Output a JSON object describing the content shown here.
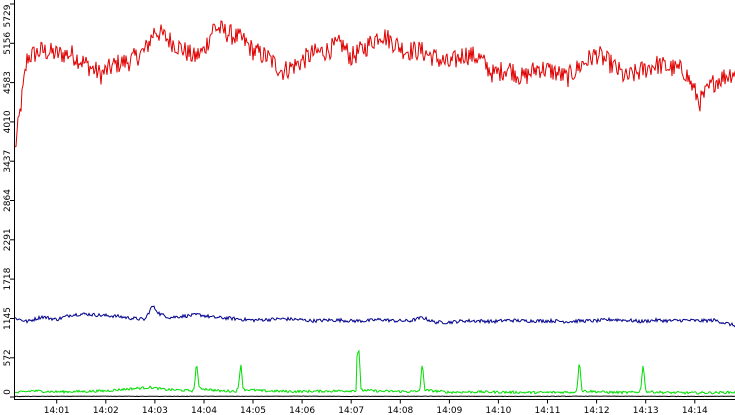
{
  "chart_data": {
    "type": "line",
    "title": "",
    "xlabel": "",
    "ylabel": "",
    "ylim": [
      0,
      5729
    ],
    "y_ticks": [
      "0",
      "572",
      "1145",
      "1718",
      "2291",
      "2864",
      "3437",
      "4010",
      "4583",
      "5156",
      "5729"
    ],
    "y_tick_values": [
      0,
      572,
      1145,
      1718,
      2291,
      2864,
      3437,
      4010,
      4583,
      5156,
      5729
    ],
    "x_ticks": [
      "14:01",
      "14:02",
      "14:03",
      "14:04",
      "14:05",
      "14:06",
      "14:07",
      "14:08",
      "14:09",
      "14:10",
      "14:11",
      "14:12",
      "14:13",
      "14:14"
    ],
    "x_tick_minutes": [
      1,
      2,
      3,
      4,
      5,
      6,
      7,
      8,
      9,
      10,
      11,
      12,
      13,
      14
    ],
    "x_range_minutes": [
      0.15,
      14.82
    ],
    "grid": false,
    "legend": "none",
    "series": [
      {
        "color": "#e00000",
        "x": [
          0.15,
          0.4,
          0.7,
          1.0,
          1.3,
          1.6,
          1.9,
          2.2,
          2.5,
          2.8,
          3.0,
          3.2,
          3.5,
          3.8,
          4.0,
          4.2,
          4.5,
          4.8,
          5.0,
          5.3,
          5.6,
          5.9,
          6.2,
          6.5,
          6.8,
          7.0,
          7.3,
          7.6,
          7.9,
          8.1,
          8.4,
          8.7,
          9.0,
          9.3,
          9.6,
          9.9,
          10.2,
          10.5,
          10.8,
          11.1,
          11.4,
          11.7,
          12.0,
          12.3,
          12.6,
          12.9,
          13.2,
          13.5,
          13.8,
          14.1,
          14.4,
          14.82
        ],
        "values": [
          3600,
          4950,
          5050,
          5000,
          5000,
          4850,
          4700,
          4850,
          4900,
          5050,
          5350,
          5250,
          5100,
          4950,
          5050,
          5400,
          5300,
          5200,
          5050,
          4950,
          4750,
          4850,
          5000,
          5050,
          5150,
          4950,
          5100,
          5300,
          5150,
          5050,
          5050,
          4950,
          4850,
          5000,
          4950,
          4700,
          4800,
          4650,
          4800,
          4750,
          4650,
          4850,
          5000,
          4850,
          4650,
          4750,
          4850,
          4800,
          4750,
          4300,
          4600,
          4750
        ]
      },
      {
        "color": "#00008c",
        "x": [
          0.15,
          0.4,
          0.7,
          1.0,
          1.3,
          1.6,
          1.9,
          2.2,
          2.5,
          2.8,
          2.95,
          3.1,
          3.3,
          3.6,
          3.9,
          4.2,
          4.5,
          4.8,
          5.0,
          5.3,
          5.6,
          5.9,
          6.2,
          6.5,
          6.8,
          7.0,
          7.3,
          7.6,
          7.9,
          8.2,
          8.45,
          8.7,
          9.0,
          9.3,
          9.6,
          9.9,
          10.2,
          10.5,
          10.8,
          11.1,
          11.4,
          11.7,
          12.0,
          12.3,
          12.6,
          12.9,
          13.2,
          13.5,
          13.8,
          14.1,
          14.4,
          14.82
        ],
        "values": [
          1150,
          1100,
          1170,
          1130,
          1200,
          1210,
          1190,
          1180,
          1150,
          1130,
          1330,
          1210,
          1160,
          1180,
          1200,
          1160,
          1150,
          1130,
          1120,
          1130,
          1140,
          1130,
          1110,
          1120,
          1120,
          1110,
          1110,
          1130,
          1110,
          1110,
          1160,
          1090,
          1090,
          1110,
          1110,
          1100,
          1120,
          1110,
          1110,
          1110,
          1100,
          1110,
          1110,
          1130,
          1120,
          1100,
          1120,
          1110,
          1120,
          1110,
          1120,
          1040
        ]
      },
      {
        "color": "#00dd00",
        "x": [
          0.15,
          0.5,
          1.0,
          1.5,
          2.0,
          2.5,
          2.9,
          3.2,
          3.5,
          3.78,
          3.8,
          3.85,
          3.9,
          4.3,
          4.65,
          4.7,
          4.75,
          4.8,
          5.2,
          5.8,
          6.4,
          6.9,
          7.1,
          7.12,
          7.16,
          7.2,
          7.6,
          8.1,
          8.35,
          8.4,
          8.45,
          8.5,
          9.0,
          9.6,
          10.2,
          10.8,
          11.3,
          11.55,
          11.6,
          11.65,
          11.7,
          12.2,
          12.6,
          12.85,
          12.9,
          12.95,
          13.0,
          13.4,
          14.0,
          14.5,
          14.82
        ],
        "values": [
          60,
          90,
          75,
          80,
          90,
          120,
          140,
          110,
          100,
          90,
          120,
          520,
          130,
          90,
          85,
          120,
          510,
          110,
          90,
          80,
          85,
          90,
          95,
          640,
          680,
          100,
          85,
          80,
          80,
          110,
          500,
          100,
          70,
          75,
          70,
          65,
          70,
          70,
          110,
          560,
          90,
          70,
          65,
          70,
          110,
          500,
          80,
          65,
          60,
          65,
          70
        ]
      },
      {
        "color": "#000000",
        "x": [
          0.15,
          1.0,
          2.0,
          3.0,
          4.0,
          5.0,
          6.0,
          7.0,
          8.0,
          9.0,
          10.0,
          11.0,
          12.0,
          13.0,
          14.0,
          14.82
        ],
        "values": [
          8,
          10,
          12,
          9,
          11,
          10,
          12,
          9,
          10,
          11,
          9,
          10,
          12,
          10,
          9,
          11
        ]
      }
    ]
  }
}
